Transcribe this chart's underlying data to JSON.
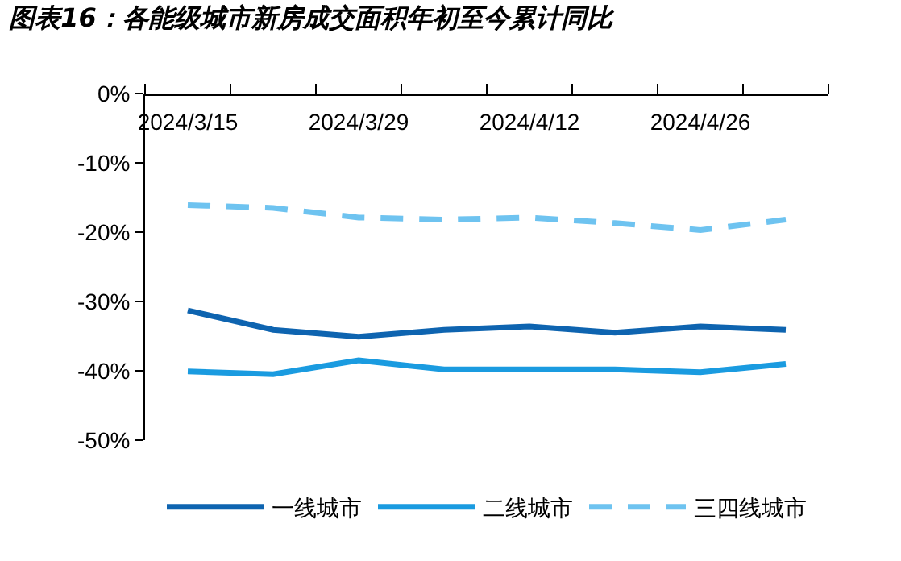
{
  "chart_data": {
    "type": "line",
    "title": "图表16：各能级城市新房成交面积年初至今累计同比",
    "categories": [
      "2024/3/15",
      null,
      "2024/3/29",
      null,
      "2024/4/12",
      null,
      "2024/4/26",
      null
    ],
    "series": [
      {
        "name": "一线城市",
        "color": "#0e64b0",
        "line_style": "solid",
        "values": [
          -31.3,
          -34.1,
          -35.1,
          -34.1,
          -33.6,
          -34.5,
          -33.6,
          -34.1
        ]
      },
      {
        "name": "二线城市",
        "color": "#1a9be0",
        "line_style": "solid",
        "values": [
          -40.1,
          -40.5,
          -38.5,
          -39.8,
          -39.8,
          -39.8,
          -40.2,
          -39.0
        ]
      },
      {
        "name": "三四线城市",
        "color": "#6ec3f0",
        "line_style": "dashed",
        "values": [
          -16.1,
          -16.5,
          -17.9,
          -18.2,
          -17.9,
          -18.7,
          -19.7,
          -18.2
        ]
      }
    ],
    "ylim": [
      -50,
      0
    ],
    "yticks": [
      {
        "value": 0,
        "label": "0%"
      },
      {
        "value": -10,
        "label": "-10%"
      },
      {
        "value": -20,
        "label": "-20%"
      },
      {
        "value": -30,
        "label": "-30%"
      },
      {
        "value": -40,
        "label": "-40%"
      },
      {
        "value": -50,
        "label": "-50%"
      }
    ],
    "grid": false,
    "legend": "bottom",
    "marker": "none"
  }
}
